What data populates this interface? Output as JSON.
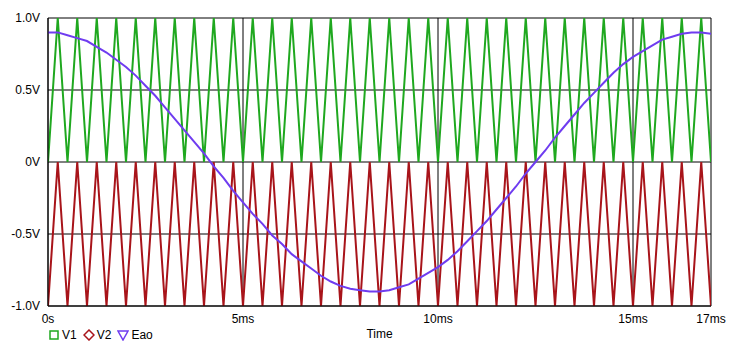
{
  "chart_data": {
    "type": "line",
    "x_label": "Time",
    "grid": true,
    "legend": "bottom-left",
    "x": [
      0,
      0.25,
      0.5,
      0.75,
      1,
      1.25,
      1.5,
      1.75,
      2,
      2.25,
      2.5,
      2.75,
      3,
      3.25,
      3.5,
      3.75,
      4,
      4.25,
      4.5,
      4.75,
      5,
      5.25,
      5.5,
      5.75,
      6,
      6.25,
      6.5,
      6.75,
      7,
      7.25,
      7.5,
      7.75,
      8,
      8.25,
      8.5,
      8.75,
      9,
      9.25,
      9.5,
      9.75,
      10,
      10.25,
      10.5,
      10.75,
      11,
      11.25,
      11.5,
      11.75,
      12,
      12.25,
      12.5,
      12.75,
      13,
      13.25,
      13.5,
      13.75,
      14,
      14.25,
      14.5,
      14.75,
      15,
      15.25,
      15.5,
      15.75,
      16,
      16.25,
      16.5,
      16.75,
      17
    ],
    "xlim": [
      0,
      17
    ],
    "xticks": [
      {
        "value": 0,
        "label": "0s"
      },
      {
        "value": 5,
        "label": "5ms"
      },
      {
        "value": 10,
        "label": "10ms"
      },
      {
        "value": 15,
        "label": "15ms"
      },
      {
        "value": 17,
        "label": "17ms"
      }
    ],
    "ylim": [
      -1,
      1
    ],
    "yticks": [
      {
        "value": -1,
        "label": "-1.0V"
      },
      {
        "value": -0.5,
        "label": "-0.5V"
      },
      {
        "value": 0,
        "label": "0V"
      },
      {
        "value": 0.5,
        "label": "0.5V"
      },
      {
        "value": 1,
        "label": "1.0V"
      }
    ],
    "series": [
      {
        "name": "V1",
        "color": "#1fa81f",
        "marker": "square",
        "values": [
          0,
          1,
          0,
          1,
          0,
          1,
          0,
          1,
          0,
          1,
          0,
          1,
          0,
          1,
          0,
          1,
          0,
          1,
          0,
          1,
          0,
          1,
          0,
          1,
          0,
          1,
          0,
          1,
          0,
          1,
          0,
          1,
          0,
          1,
          0,
          1,
          0,
          1,
          0,
          1,
          0,
          1,
          0,
          1,
          0,
          1,
          0,
          1,
          0,
          1,
          0,
          1,
          0,
          1,
          0,
          1,
          0,
          1,
          0,
          1,
          0,
          1,
          0,
          1,
          0,
          1,
          0,
          1,
          0
        ]
      },
      {
        "name": "V2",
        "color": "#a8141a",
        "marker": "diamond",
        "values": [
          -1,
          0,
          -1,
          0,
          -1,
          0,
          -1,
          0,
          -1,
          0,
          -1,
          0,
          -1,
          0,
          -1,
          0,
          -1,
          0,
          -1,
          0,
          -1,
          0,
          -1,
          0,
          -1,
          0,
          -1,
          0,
          -1,
          0,
          -1,
          0,
          -1,
          0,
          -1,
          0,
          -1,
          0,
          -1,
          0,
          -1,
          0,
          -1,
          0,
          -1,
          0,
          -1,
          0,
          -1,
          0,
          -1,
          0,
          -1,
          0,
          -1,
          0,
          -1,
          0,
          -1,
          0,
          -1,
          0,
          -1,
          0,
          -1,
          0,
          -1,
          0,
          -1
        ]
      },
      {
        "name": "Eao",
        "color": "#6f3cf0",
        "marker": "triangle",
        "values": [
          0.9,
          0.9,
          0.88,
          0.86,
          0.84,
          0.8,
          0.76,
          0.71,
          0.66,
          0.6,
          0.53,
          0.46,
          0.38,
          0.3,
          0.22,
          0.14,
          0.06,
          -0.03,
          -0.11,
          -0.2,
          -0.28,
          -0.36,
          -0.43,
          -0.51,
          -0.57,
          -0.64,
          -0.69,
          -0.74,
          -0.79,
          -0.83,
          -0.86,
          -0.88,
          -0.89,
          -0.9,
          -0.9,
          -0.89,
          -0.87,
          -0.85,
          -0.81,
          -0.77,
          -0.73,
          -0.68,
          -0.62,
          -0.55,
          -0.48,
          -0.41,
          -0.33,
          -0.25,
          -0.17,
          -0.08,
          0,
          0.08,
          0.17,
          0.25,
          0.33,
          0.41,
          0.48,
          0.55,
          0.62,
          0.68,
          0.73,
          0.77,
          0.81,
          0.85,
          0.87,
          0.89,
          0.9,
          0.9,
          0.89
        ]
      }
    ]
  }
}
